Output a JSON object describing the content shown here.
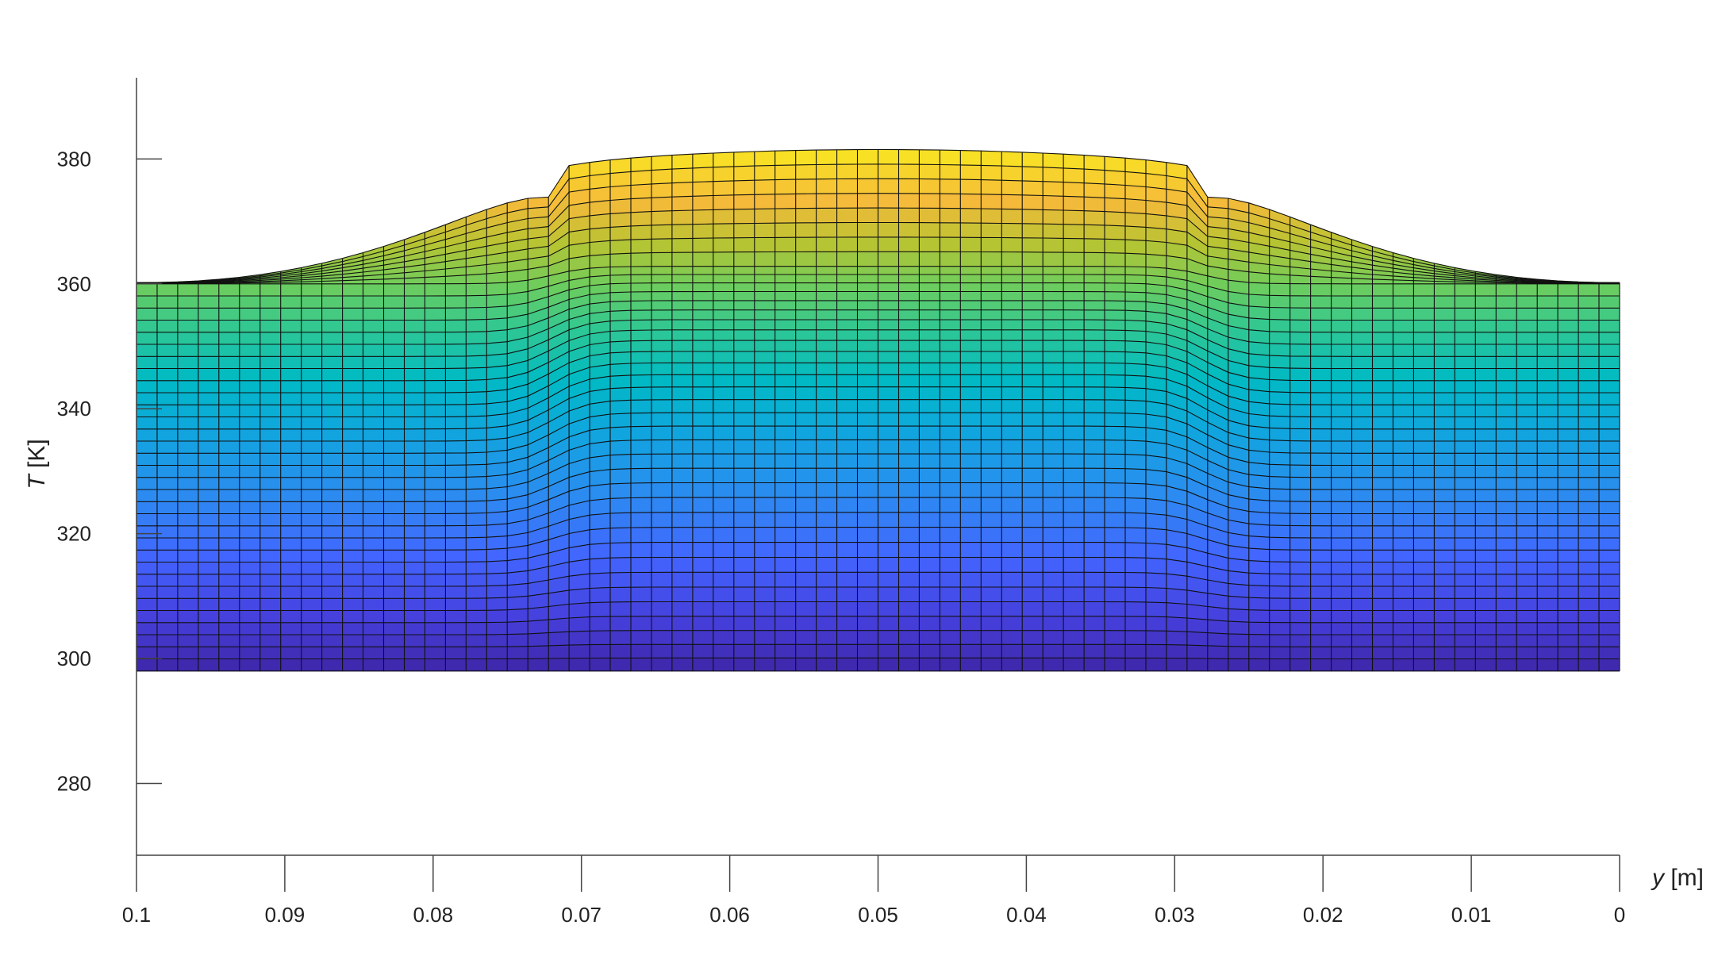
{
  "chart_data": {
    "type": "surface-mesh",
    "xlabel": {
      "var": "y",
      "unit": " [m]"
    },
    "ylabel": {
      "var": "T",
      "unit": " [K]"
    },
    "xlim": [
      0.1,
      0
    ],
    "ylim": [
      268.5,
      393
    ],
    "x_reversed": true,
    "x_ticks": [
      "0.1",
      "0.09",
      "0.08",
      "0.07",
      "0.06",
      "0.05",
      "0.04",
      "0.03",
      "0.02",
      "0.01",
      "0"
    ],
    "x_tick_values": [
      0.1,
      0.09,
      0.08,
      0.07,
      0.06,
      0.05,
      0.04,
      0.03,
      0.02,
      0.01,
      0
    ],
    "y_ticks": [
      "280",
      "300",
      "320",
      "340",
      "360",
      "380"
    ],
    "y_tick_values": [
      280,
      300,
      320,
      340,
      360,
      380
    ],
    "grid": false,
    "colormap": "parula",
    "mesh": {
      "y_range_m": [
        0,
        0.1
      ],
      "columns": 72,
      "rows": 40,
      "T_bottom_K": 298,
      "T_mid_edge_K": 360,
      "T_mid_center_K": 362.8,
      "T_top_edge_K": 360.2,
      "T_top_center_K": 381.5,
      "heated_zone_m": [
        0.028,
        0.072
      ]
    },
    "profiles": {
      "top_surface": [
        [
          0,
          360.2
        ],
        [
          0.005,
          360.8
        ],
        [
          0.01,
          362
        ],
        [
          0.015,
          364.5
        ],
        [
          0.02,
          368
        ],
        [
          0.025,
          373.5
        ],
        [
          0.027,
          377.5
        ],
        [
          0.028,
          378.6
        ],
        [
          0.03,
          379.5
        ],
        [
          0.035,
          380.6
        ],
        [
          0.04,
          381.2
        ],
        [
          0.045,
          381.5
        ],
        [
          0.05,
          381.6
        ],
        [
          0.055,
          381.5
        ],
        [
          0.06,
          381.2
        ],
        [
          0.065,
          380.6
        ],
        [
          0.07,
          379.5
        ],
        [
          0.072,
          378.6
        ],
        [
          0.073,
          377.5
        ],
        [
          0.075,
          373.5
        ],
        [
          0.08,
          368
        ],
        [
          0.085,
          364.5
        ],
        [
          0.09,
          362
        ],
        [
          0.095,
          360.8
        ],
        [
          0.1,
          360.2
        ]
      ],
      "interface_layer": [
        [
          0,
          360
        ],
        [
          0.025,
          360
        ],
        [
          0.027,
          360.6
        ],
        [
          0.03,
          361.8
        ],
        [
          0.04,
          362.6
        ],
        [
          0.05,
          362.8
        ],
        [
          0.06,
          362.6
        ],
        [
          0.07,
          361.8
        ],
        [
          0.073,
          360.6
        ],
        [
          0.075,
          360
        ],
        [
          0.1,
          360
        ]
      ],
      "bottom_surface": [
        [
          0,
          298
        ],
        [
          0.1,
          298
        ]
      ]
    }
  }
}
